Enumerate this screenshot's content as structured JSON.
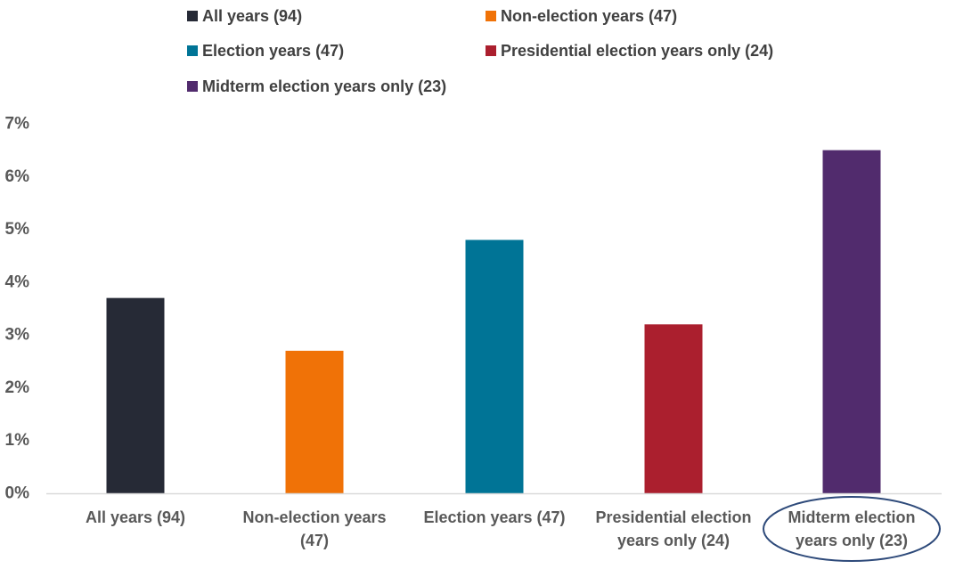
{
  "chart_data": {
    "type": "bar",
    "title": "",
    "xlabel": "",
    "ylabel": "",
    "categories": [
      [
        "All years (94)"
      ],
      [
        "Non-election years",
        "(47)"
      ],
      [
        "Election years (47)"
      ],
      [
        "Presidential election",
        "years only (24)"
      ],
      [
        "Midterm election",
        "years only (23)"
      ]
    ],
    "values": [
      3.7,
      2.7,
      4.8,
      3.2,
      6.5
    ],
    "colors": [
      "#262a36",
      "#f07207",
      "#007496",
      "#ab1f2e",
      "#512b6d"
    ],
    "ylim": [
      0,
      7
    ],
    "yticks": [
      "0%",
      "1%",
      "2%",
      "3%",
      "4%",
      "5%",
      "6%",
      "7%"
    ],
    "y_unit": "%",
    "grid": false,
    "legend": {
      "placement": "top",
      "entries": [
        "All years (94)",
        "Non-election years (47)",
        "Election years (47)",
        "Presidential election years only (24)",
        "Midterm election years only (23)"
      ]
    },
    "highlight": {
      "category": "Midterm election years only (23)",
      "shape": "ellipse",
      "color": "#2e4a7a"
    }
  }
}
